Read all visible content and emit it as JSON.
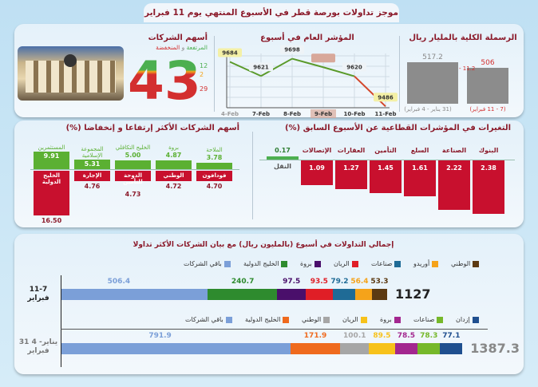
{
  "title": "موجز تداولات بورصة قطر في الأسبوع المنتهي يوم 11 فبراير 2016",
  "capitalization": {
    "title": "الرسملة الكلية بالمليار ريال",
    "change": "- 11.2",
    "bars": [
      {
        "period": "(31 يناير - 4 فبراير)",
        "value": 517.2,
        "label": "517.2",
        "color": "#888888"
      },
      {
        "period": "(7 - 11 فبراير)",
        "value": 506,
        "label": "506",
        "color": "#d32f2f"
      }
    ]
  },
  "index_chart": {
    "type": "line",
    "title": "المؤشر العام في أسبوع",
    "x": [
      "4-Feb",
      "7-Feb",
      "8-Feb",
      "9-Feb",
      "10-Feb",
      "11-Feb"
    ],
    "values": [
      9684,
      9621,
      9698,
      9660,
      9620,
      9486
    ],
    "labels": [
      "9684",
      "9621",
      "9698",
      "",
      "9620",
      "9486"
    ],
    "highlight": "9-Feb",
    "ylim": [
      9480,
      9700
    ],
    "grid": true
  },
  "stocks": {
    "title": "أسهم الشركات",
    "subtitle_up": "المرتفعة",
    "subtitle_and": " و ",
    "subtitle_down": "المنخفضة",
    "total": "43",
    "up": "12",
    "unchanged": "2",
    "down": "29"
  },
  "sectors": {
    "type": "bar",
    "title": "التغيرات في المؤشرات القطاعية عن الأسبوع السابق (%)",
    "categories": [
      "البنوك",
      "الصناعة",
      "السلع",
      "التأمين",
      "العقارات",
      "الإتصالات",
      "النقل"
    ],
    "values": [
      -2.38,
      -2.22,
      -1.61,
      -1.45,
      -1.27,
      -1.09,
      0.17
    ],
    "labels": [
      "2.38",
      "2.22",
      "1.61",
      "1.45",
      "1.27",
      "1.09",
      "0.17"
    ]
  },
  "movers": {
    "type": "bar",
    "title": "أسهم الشركات الأكثر إرتفاعا و إنخفاضا (%)",
    "gainers": [
      {
        "name": "المستثمرين",
        "value": 9.91,
        "label": "9.91"
      },
      {
        "name": "المجموعة الإسلامية",
        "value": 5.31,
        "label": "5.31"
      },
      {
        "name": "الخليج التكافلي",
        "value": 5.0,
        "label": "5.00"
      },
      {
        "name": "بروة",
        "value": 4.87,
        "label": "4.87"
      },
      {
        "name": "الملاحة",
        "value": 3.78,
        "label": "3.78"
      }
    ],
    "losers": [
      {
        "name": "الخليج الدولية",
        "value": -16.5,
        "label": "16.50"
      },
      {
        "name": "الإجارة",
        "value": -4.76,
        "label": "4.76"
      },
      {
        "name": "الدوحة للتأمين",
        "value": -4.73,
        "label": "4.73"
      },
      {
        "name": "الوطني",
        "value": -4.72,
        "label": "4.72"
      },
      {
        "name": "فودافون",
        "value": -4.7,
        "label": "4.70"
      }
    ]
  },
  "trading": {
    "type": "bar",
    "title": "إجمالي التداولات في أسبوع (بالمليون ريال) مع  بيان الشركات الأكثر تداولا",
    "weeks": [
      {
        "period": "11-7 فبراير",
        "total": "1127",
        "total_value": 1127,
        "total_color": "#222222",
        "series": [
          {
            "name": "باقي الشركات",
            "value": 506.4,
            "label": "506.4",
            "color": "#7b9fd8"
          },
          {
            "name": "الخليج الدولية",
            "value": 240.7,
            "label": "240.7",
            "color": "#2e8b2e"
          },
          {
            "name": "بروة",
            "value": 97.5,
            "label": "97.5",
            "color": "#4a0f6b"
          },
          {
            "name": "الريان",
            "value": 93.5,
            "label": "93.5",
            "color": "#e01e26"
          },
          {
            "name": "صناعات",
            "value": 79.2,
            "label": "79.2",
            "color": "#1f6b96"
          },
          {
            "name": "أوريدو",
            "value": 56.4,
            "label": "56.4",
            "color": "#f5a31a"
          },
          {
            "name": "الوطني",
            "value": 53.3,
            "label": "53.3",
            "color": "#5c3a12"
          }
        ]
      },
      {
        "period": "31 يناير- 4 فبراير",
        "total": "1387.3",
        "total_value": 1387.3,
        "total_color": "#888888",
        "series": [
          {
            "name": "باقي الشركات",
            "value": 791.9,
            "label": "791.9",
            "color": "#7b9fd8"
          },
          {
            "name": "الخليج الدولية",
            "value": 171.9,
            "label": "171.9",
            "color": "#ef6a1e"
          },
          {
            "name": "الوطني",
            "value": 100.1,
            "label": "100.1",
            "color": "#a6a6a6"
          },
          {
            "name": "الريان",
            "value": 89.5,
            "label": "89.5",
            "color": "#f7c21b"
          },
          {
            "name": "بروة",
            "value": 78.5,
            "label": "78.5",
            "color": "#a3278f"
          },
          {
            "name": "صناعات",
            "value": 78.3,
            "label": "78.3",
            "color": "#76b82a"
          },
          {
            "name": "إزدان",
            "value": 77.1,
            "label": "77.1",
            "color": "#1f4f8f"
          }
        ]
      }
    ]
  }
}
